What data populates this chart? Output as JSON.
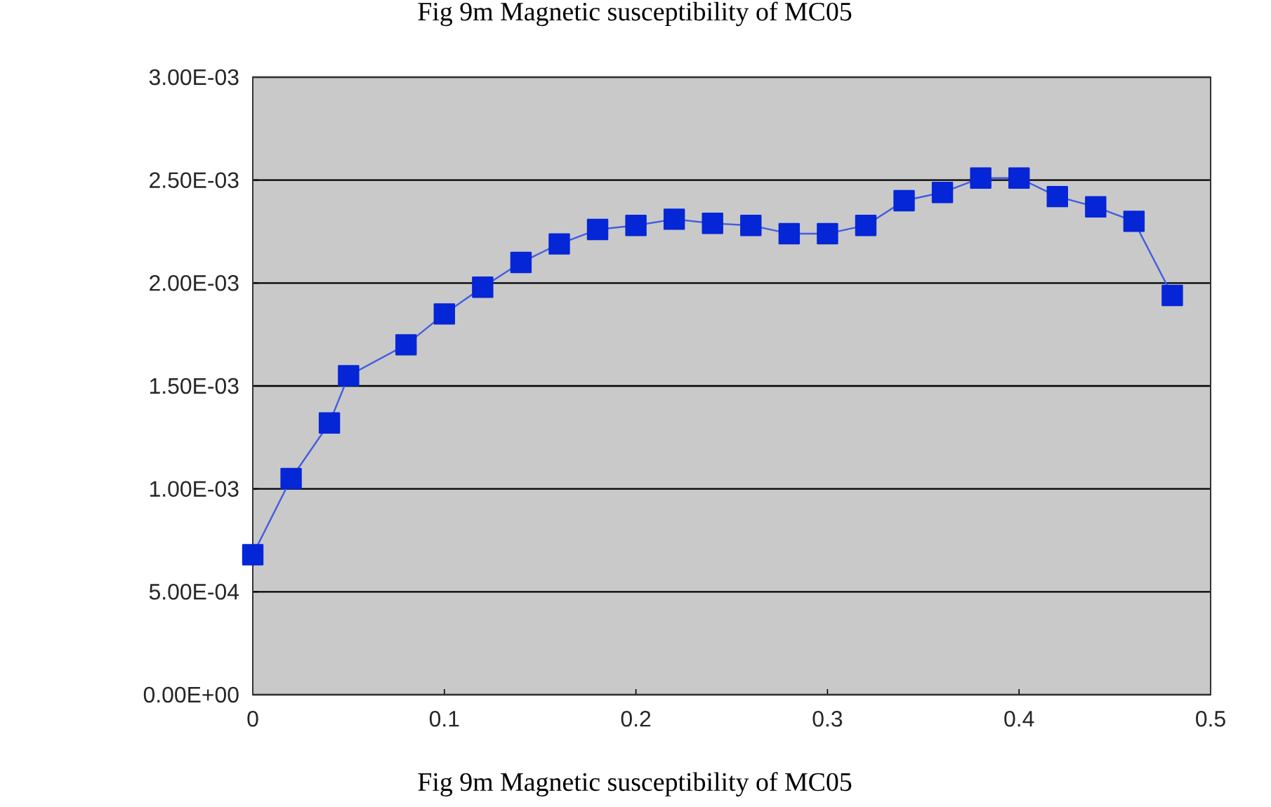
{
  "chart_data": {
    "type": "line",
    "title": "Fig 9m Magnetic susceptibility of MC05",
    "x": [
      0,
      0.02,
      0.04,
      0.05,
      0.08,
      0.1,
      0.12,
      0.14,
      0.16,
      0.18,
      0.2,
      0.22,
      0.24,
      0.26,
      0.28,
      0.3,
      0.32,
      0.34,
      0.36,
      0.38,
      0.4,
      0.42,
      0.44,
      0.46,
      0.48
    ],
    "series": [
      {
        "color": "#0526d6",
        "values": [
          0.00068,
          0.00105,
          0.00132,
          0.00155,
          0.0017,
          0.00185,
          0.00198,
          0.0021,
          0.00219,
          0.00226,
          0.00228,
          0.00231,
          0.00229,
          0.00228,
          0.00224,
          0.00224,
          0.00228,
          0.0024,
          0.00244,
          0.00251,
          0.00251,
          0.00242,
          0.00237,
          0.0023,
          0.00194
        ]
      }
    ],
    "xlim": [
      0,
      0.5
    ],
    "xticks": [
      0,
      0.1,
      0.2,
      0.3,
      0.4,
      0.5
    ],
    "ylim": [
      0,
      0.003
    ],
    "yticks": [
      {
        "value": 0,
        "label": "0.00E+00"
      },
      {
        "value": 0.0005,
        "label": "5.00E-04"
      },
      {
        "value": 0.001,
        "label": "1.00E-03"
      },
      {
        "value": 0.0015,
        "label": "1.50E-03"
      },
      {
        "value": 0.002,
        "label": "2.00E-03"
      },
      {
        "value": 0.0025,
        "label": "2.50E-03"
      },
      {
        "value": 0.003,
        "label": "3.00E-03"
      }
    ],
    "grid": "y",
    "marker": "square",
    "line_style": "solid",
    "annotations": [
      "Fig 9m Magnetic susceptibility of MC05"
    ]
  }
}
